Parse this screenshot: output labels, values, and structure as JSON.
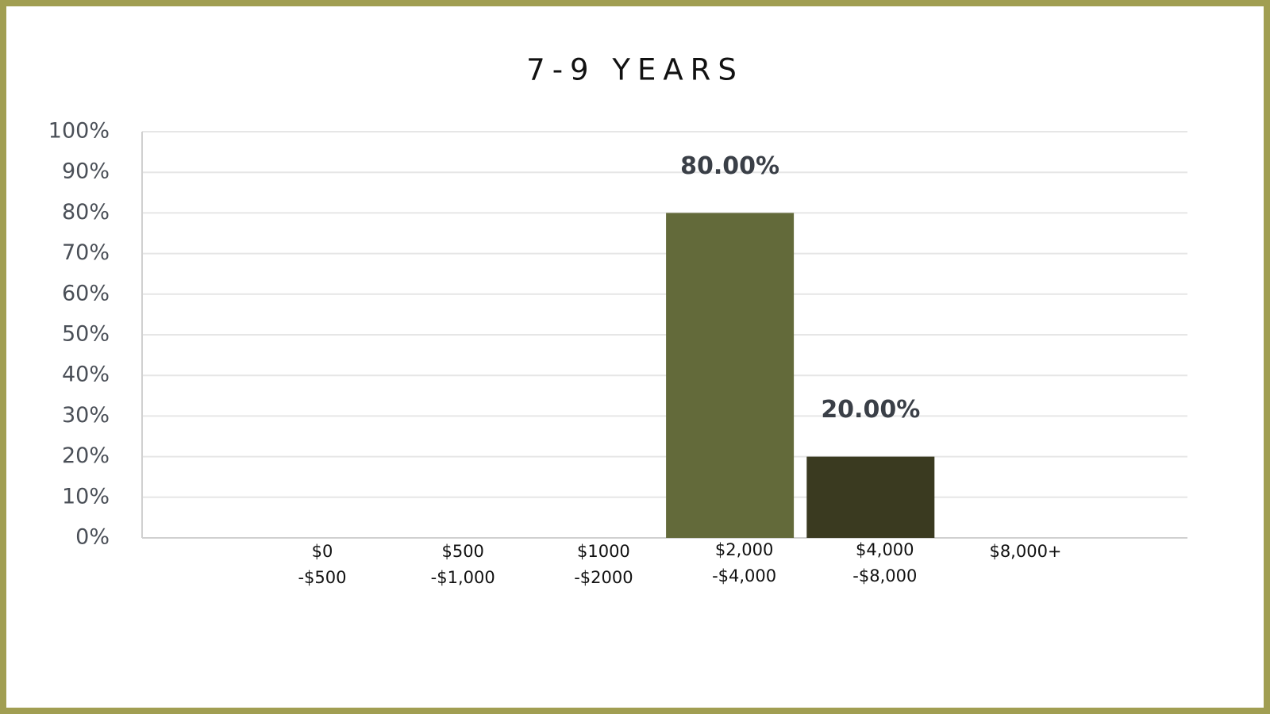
{
  "chart_data": {
    "type": "bar",
    "title": "7-9 YEARS",
    "categories": [
      [
        "$0",
        "-$500"
      ],
      [
        "$500",
        "-$1,000"
      ],
      [
        "$1000",
        "-$2000"
      ],
      [
        "$2,000",
        "-$4,000"
      ],
      [
        "$4,000",
        "-$8,000"
      ],
      [
        "$8,000+"
      ]
    ],
    "values": [
      0,
      0,
      0,
      80,
      20,
      0
    ],
    "value_labels": [
      null,
      null,
      null,
      "80.00%",
      "20.00%",
      null
    ],
    "colors": [
      "#636a3a",
      "#636a3a",
      "#636a3a",
      "#636a3a",
      "#3a3a20",
      "#636a3a"
    ],
    "ylim": [
      0,
      100
    ],
    "yticks": [
      {
        "value": 0,
        "label": "0%"
      },
      {
        "value": 10,
        "label": "10%"
      },
      {
        "value": 20,
        "label": "20%"
      },
      {
        "value": 30,
        "label": "30%"
      },
      {
        "value": 40,
        "label": "40%"
      },
      {
        "value": 50,
        "label": "50%"
      },
      {
        "value": 60,
        "label": "60%"
      },
      {
        "value": 70,
        "label": "70%"
      },
      {
        "value": 80,
        "label": "80%"
      },
      {
        "value": 90,
        "label": "90%"
      },
      {
        "value": 100,
        "label": "100%"
      }
    ],
    "grid": true
  }
}
